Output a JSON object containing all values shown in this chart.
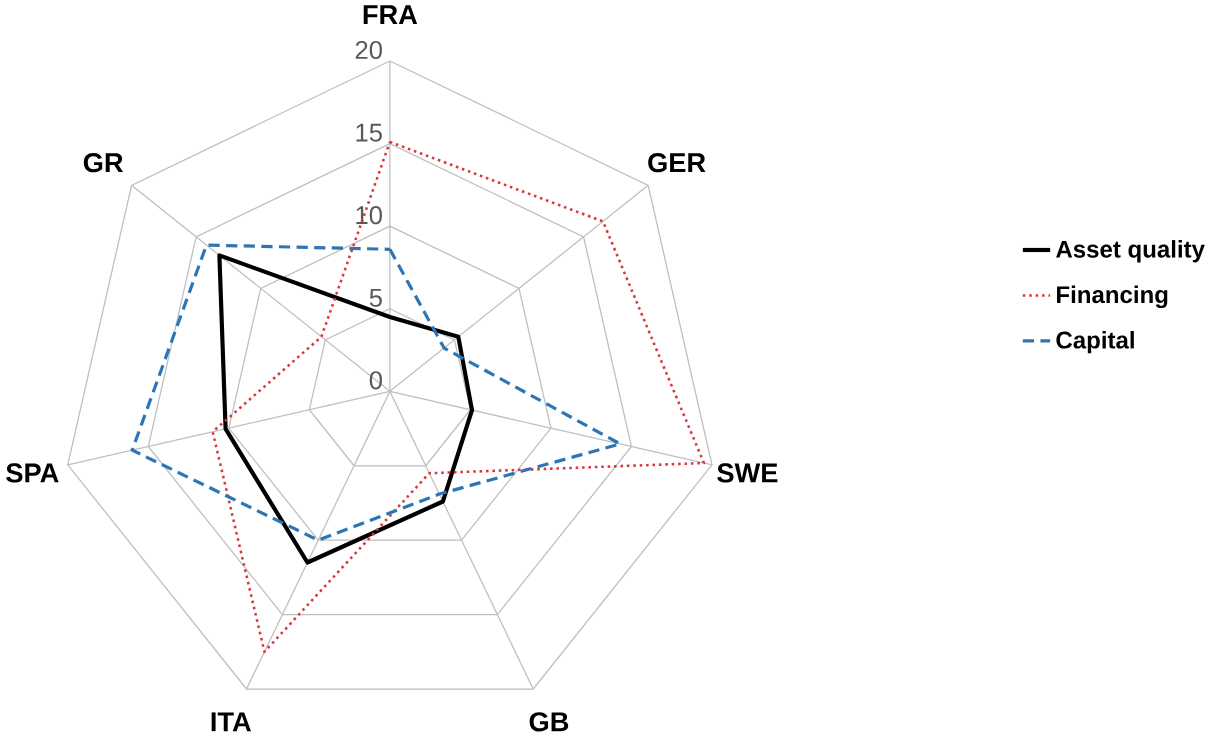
{
  "chart_data": {
    "type": "radar",
    "categories": [
      "FRA",
      "GER",
      "SWE",
      "GB",
      "ITA",
      "SPA",
      "GR"
    ],
    "series": [
      {
        "name": "Asset quality",
        "color": "#000000",
        "line_style": "solid",
        "values": [
          4.5,
          5.3,
          5.1,
          7.4,
          11.5,
          10.2,
          13.2
        ]
      },
      {
        "name": "Financing",
        "color": "#d9383a",
        "line_style": "dotted",
        "values": [
          15.1,
          16.5,
          19.5,
          5.5,
          17.5,
          11.0,
          5.3
        ]
      },
      {
        "name": "Capital",
        "color": "#2e75b6",
        "line_style": "dashed",
        "values": [
          8.6,
          4.2,
          14.3,
          6.9,
          10.0,
          16.0,
          14.2
        ]
      }
    ],
    "ylim": [
      0,
      20
    ],
    "yticks": [
      0,
      5,
      10,
      15,
      20
    ],
    "grid": true,
    "legend": "right"
  }
}
